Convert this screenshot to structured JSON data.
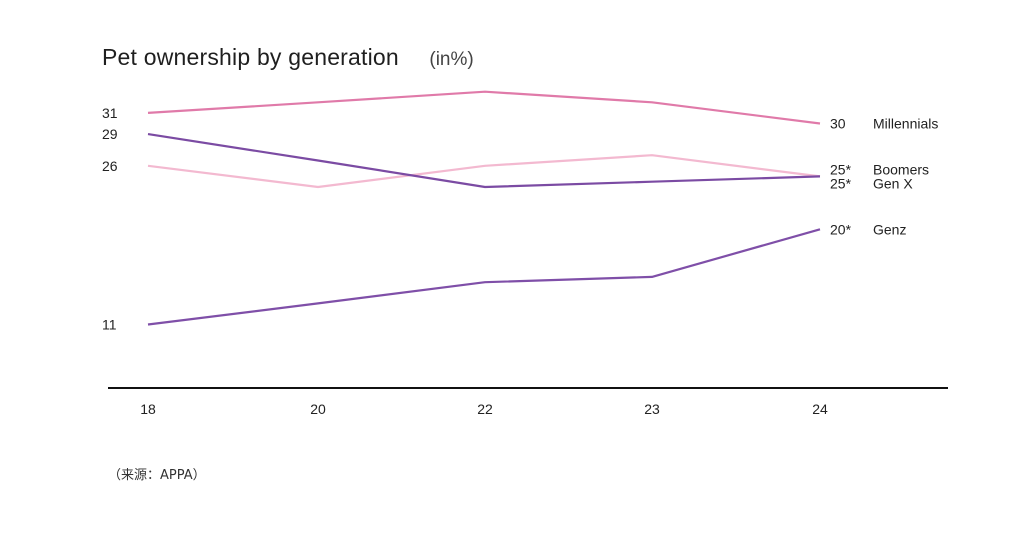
{
  "chart_data": {
    "type": "line",
    "title": "Pet ownership by generation",
    "unit": "(in%)",
    "categories": [
      "18",
      "20",
      "22",
      "23",
      "24"
    ],
    "series": [
      {
        "name": "Millennials",
        "values": [
          31,
          32,
          33,
          32,
          30
        ],
        "color": "#e07aa9",
        "start_label": "31",
        "end_label": "30"
      },
      {
        "name": "Boomers",
        "values": [
          26,
          24,
          26,
          27,
          25
        ],
        "color": "#f3b9d0",
        "start_label": "26",
        "end_label": "25*"
      },
      {
        "name": "Gen X",
        "values": [
          29,
          26.5,
          24,
          24.5,
          25
        ],
        "color": "#7b4ba3",
        "start_label": "29",
        "end_label": "25*"
      },
      {
        "name": "Genz",
        "values": [
          11,
          13,
          15,
          15.5,
          20
        ],
        "color": "#7f4fa8",
        "start_label": "11",
        "end_label": "20*"
      }
    ],
    "ylim": [
      5,
      36
    ],
    "grid": false,
    "legend": "inline-right"
  },
  "source": "（来源：APPA）"
}
